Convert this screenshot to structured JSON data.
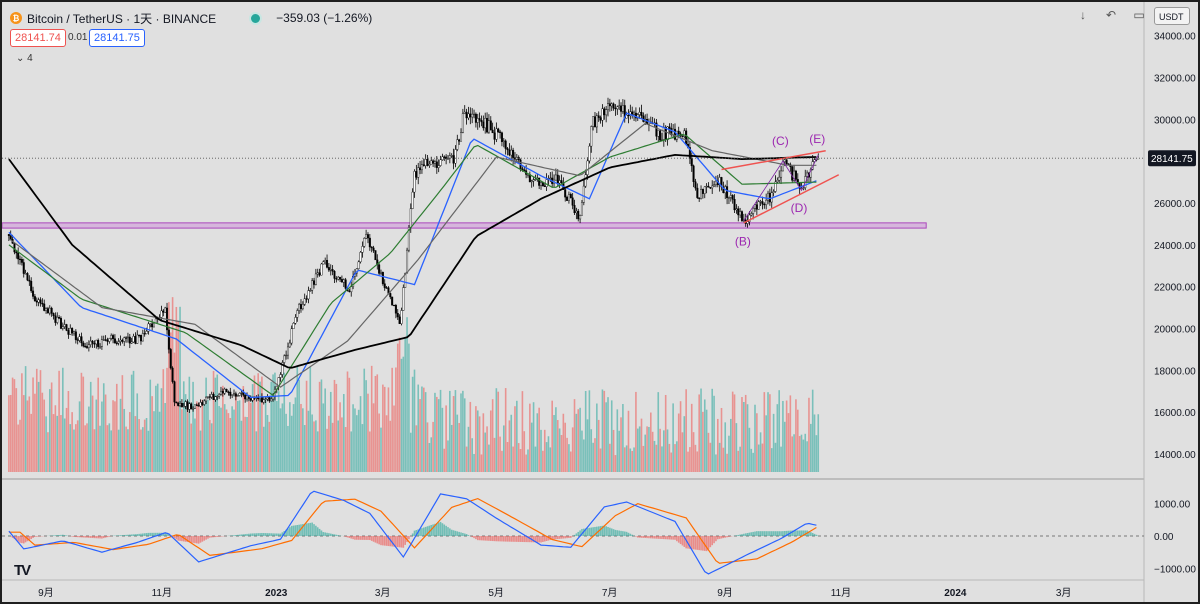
{
  "header": {
    "symbol": "Bitcoin / TetherUS · 1天 · BINANCE",
    "coin_icon": "bitcoin-icon",
    "change": "−359.03 (−1.26%)",
    "status_color": "#26a69a"
  },
  "prices": {
    "sell": "28141.74",
    "spread": "0.01",
    "buy": "28141.75"
  },
  "indicator_count": "4",
  "toolbar": {
    "icons": [
      "arrow-down-icon",
      "undo-icon",
      "snapshot-icon",
      "fullscreen-icon"
    ],
    "currency": "USDT"
  },
  "annotations": [
    {
      "label": "(B)",
      "color": "#9c27b0"
    },
    {
      "label": "(C)",
      "color": "#9c27b0"
    },
    {
      "label": "(D)",
      "color": "#9c27b0"
    },
    {
      "label": "(E)",
      "color": "#9c27b0"
    }
  ],
  "colors": {
    "background": "#e0e0e0",
    "up_candle": "#ffffff",
    "down_candle": "#000000",
    "volume_up": "#26a69a",
    "volume_down": "#ef5350",
    "ma_black": "#000000",
    "ma_gray": "#666666",
    "ma_blue": "#2962ff",
    "ma_green": "#2e7d32",
    "support_zone": "#ce93d8",
    "trendline": "#ef5350",
    "macd": "#2962ff",
    "signal": "#ff6d00"
  },
  "chart_data": {
    "type": "line",
    "title": "Bitcoin / TetherUS · 1天 · BINANCE",
    "current_price": 28141.75,
    "price_axis": {
      "ticks": [
        14000,
        16000,
        18000,
        20000,
        22000,
        24000,
        26000,
        28000,
        30000,
        32000,
        34000
      ],
      "labels": [
        "14000.00",
        "16000.00",
        "18000.00",
        "20000.00",
        "22000.00",
        "24000.00",
        "26000.00",
        "28000.00",
        "30000.00",
        "32000.00",
        "34000.00"
      ],
      "range": [
        13200,
        34600
      ]
    },
    "macd_axis": {
      "ticks": [
        1000,
        0,
        -1000
      ],
      "labels": [
        "1000.00",
        "0.00",
        "−1000.00"
      ]
    },
    "time_labels": [
      "9月",
      "11月",
      "2023",
      "3月",
      "5月",
      "7月",
      "9月",
      "11月",
      "2024",
      "3月"
    ],
    "support_zone": [
      24800,
      25050
    ],
    "series": [
      {
        "name": "BTCUSDT",
        "x": [
          "2022-08-12",
          "2022-08-26",
          "2022-09-09",
          "2022-09-23",
          "2022-10-07",
          "2022-10-21",
          "2022-11-04",
          "2022-11-09",
          "2022-11-20",
          "2022-12-04",
          "2022-12-18",
          "2023-01-01",
          "2023-01-14",
          "2023-01-28",
          "2023-02-11",
          "2023-02-20",
          "2023-03-10",
          "2023-03-18",
          "2023-03-25",
          "2023-04-08",
          "2023-04-14",
          "2023-04-25",
          "2023-05-06",
          "2023-05-20",
          "2023-06-03",
          "2023-06-15",
          "2023-06-21",
          "2023-06-30",
          "2023-07-14",
          "2023-07-28",
          "2023-08-10",
          "2023-08-17",
          "2023-08-29",
          "2023-09-11",
          "2023-09-25",
          "2023-10-02",
          "2023-10-12",
          "2023-10-21"
        ],
        "values": [
          24500,
          21500,
          20200,
          19200,
          19500,
          19500,
          21000,
          16500,
          16200,
          17000,
          16700,
          16600,
          20800,
          23100,
          21900,
          24500,
          20200,
          27300,
          27900,
          28100,
          30400,
          29800,
          28800,
          27000,
          27100,
          25200,
          29800,
          30500,
          30300,
          29300,
          29400,
          26300,
          27000,
          25200,
          26300,
          27900,
          26800,
          28141
        ]
      },
      {
        "name": "MA-blue",
        "x": [
          "2022-08-12",
          "2022-09-20",
          "2022-11-10",
          "2022-12-20",
          "2023-01-10",
          "2023-02-15",
          "2023-03-18",
          "2023-04-18",
          "2023-05-25",
          "2023-06-20",
          "2023-07-10",
          "2023-08-05",
          "2023-09-01",
          "2023-09-25",
          "2023-10-21"
        ],
        "values": [
          24600,
          21000,
          19500,
          16700,
          16800,
          22800,
          22100,
          29100,
          27300,
          26200,
          30300,
          29400,
          26600,
          26200,
          27100
        ]
      },
      {
        "name": "MA-green",
        "x": [
          "2022-08-12",
          "2022-09-20",
          "2022-11-15",
          "2023-01-01",
          "2023-02-01",
          "2023-03-05",
          "2023-04-01",
          "2023-04-20",
          "2023-06-01",
          "2023-07-01",
          "2023-08-10",
          "2023-09-10",
          "2023-10-21"
        ],
        "values": [
          24000,
          21400,
          19800,
          16800,
          21200,
          23600,
          26600,
          28800,
          26700,
          28200,
          29300,
          26900,
          27000
        ]
      },
      {
        "name": "MA-gray",
        "x": [
          "2022-08-12",
          "2022-10-01",
          "2022-11-20",
          "2023-01-05",
          "2023-02-10",
          "2023-03-20",
          "2023-05-01",
          "2023-06-15",
          "2023-07-20",
          "2023-08-25",
          "2023-10-05",
          "2023-10-21"
        ],
        "values": [
          24300,
          21000,
          20200,
          17200,
          19400,
          23300,
          28200,
          27300,
          29800,
          28500,
          27800,
          27800
        ]
      },
      {
        "name": "MA-black",
        "x": [
          "2022-08-12",
          "2022-09-15",
          "2022-11-01",
          "2022-12-15",
          "2023-01-10",
          "2023-02-15",
          "2023-03-15",
          "2023-04-20",
          "2023-05-25",
          "2023-07-01",
          "2023-08-05",
          "2023-09-10",
          "2023-10-21"
        ],
        "values": [
          28100,
          24000,
          20400,
          19200,
          18100,
          19000,
          19600,
          24400,
          26200,
          27700,
          28300,
          28100,
          28200
        ]
      }
    ]
  }
}
